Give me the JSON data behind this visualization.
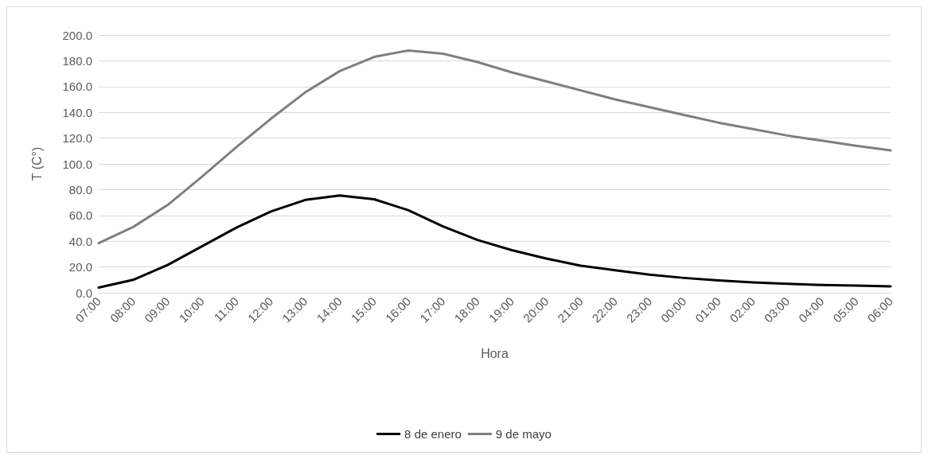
{
  "chart_data": {
    "type": "line",
    "xlabel": "Hora",
    "ylabel": "T (C°)",
    "categories": [
      "07:00",
      "08:00",
      "09:00",
      "10:00",
      "11:00",
      "12:00",
      "13:00",
      "14:00",
      "15:00",
      "16:00",
      "17:00",
      "18:00",
      "19:00",
      "20:00",
      "21:00",
      "22:00",
      "23:00",
      "00:00",
      "01:00",
      "02:00",
      "03:00",
      "04:00",
      "05:00",
      "06:00"
    ],
    "series": [
      {
        "name": "8 de enero",
        "color": "#000000",
        "values": [
          4,
          10,
          21.5,
          36,
          50.5,
          63,
          72,
          75.5,
          72.5,
          64,
          51.5,
          41,
          33,
          26.5,
          21,
          17.5,
          14,
          11.5,
          9.5,
          8,
          7,
          6,
          5.5,
          5
        ]
      },
      {
        "name": "9 de mayo",
        "color": "#7f7f7f",
        "values": [
          38.5,
          51,
          68,
          90,
          113,
          135,
          155.5,
          172,
          183,
          188,
          185.5,
          179,
          171,
          164,
          157,
          150,
          144,
          138,
          132,
          127,
          122,
          118,
          114,
          110.5
        ]
      }
    ],
    "ylim": [
      0,
      200
    ],
    "yticks": [
      {
        "value": 0,
        "label": "0.0"
      },
      {
        "value": 20,
        "label": "20.0"
      },
      {
        "value": 40,
        "label": "40.0"
      },
      {
        "value": 60,
        "label": "60.0"
      },
      {
        "value": 80,
        "label": "80.0"
      },
      {
        "value": 100,
        "label": "100.0"
      },
      {
        "value": 120,
        "label": "120.0"
      },
      {
        "value": 140,
        "label": "140.0"
      },
      {
        "value": 160,
        "label": "160.0"
      },
      {
        "value": 180,
        "label": "180.0"
      },
      {
        "value": 200,
        "label": "200.0"
      }
    ],
    "grid": "y",
    "legend": "bottom",
    "marker": "none",
    "line_style": "solid"
  }
}
